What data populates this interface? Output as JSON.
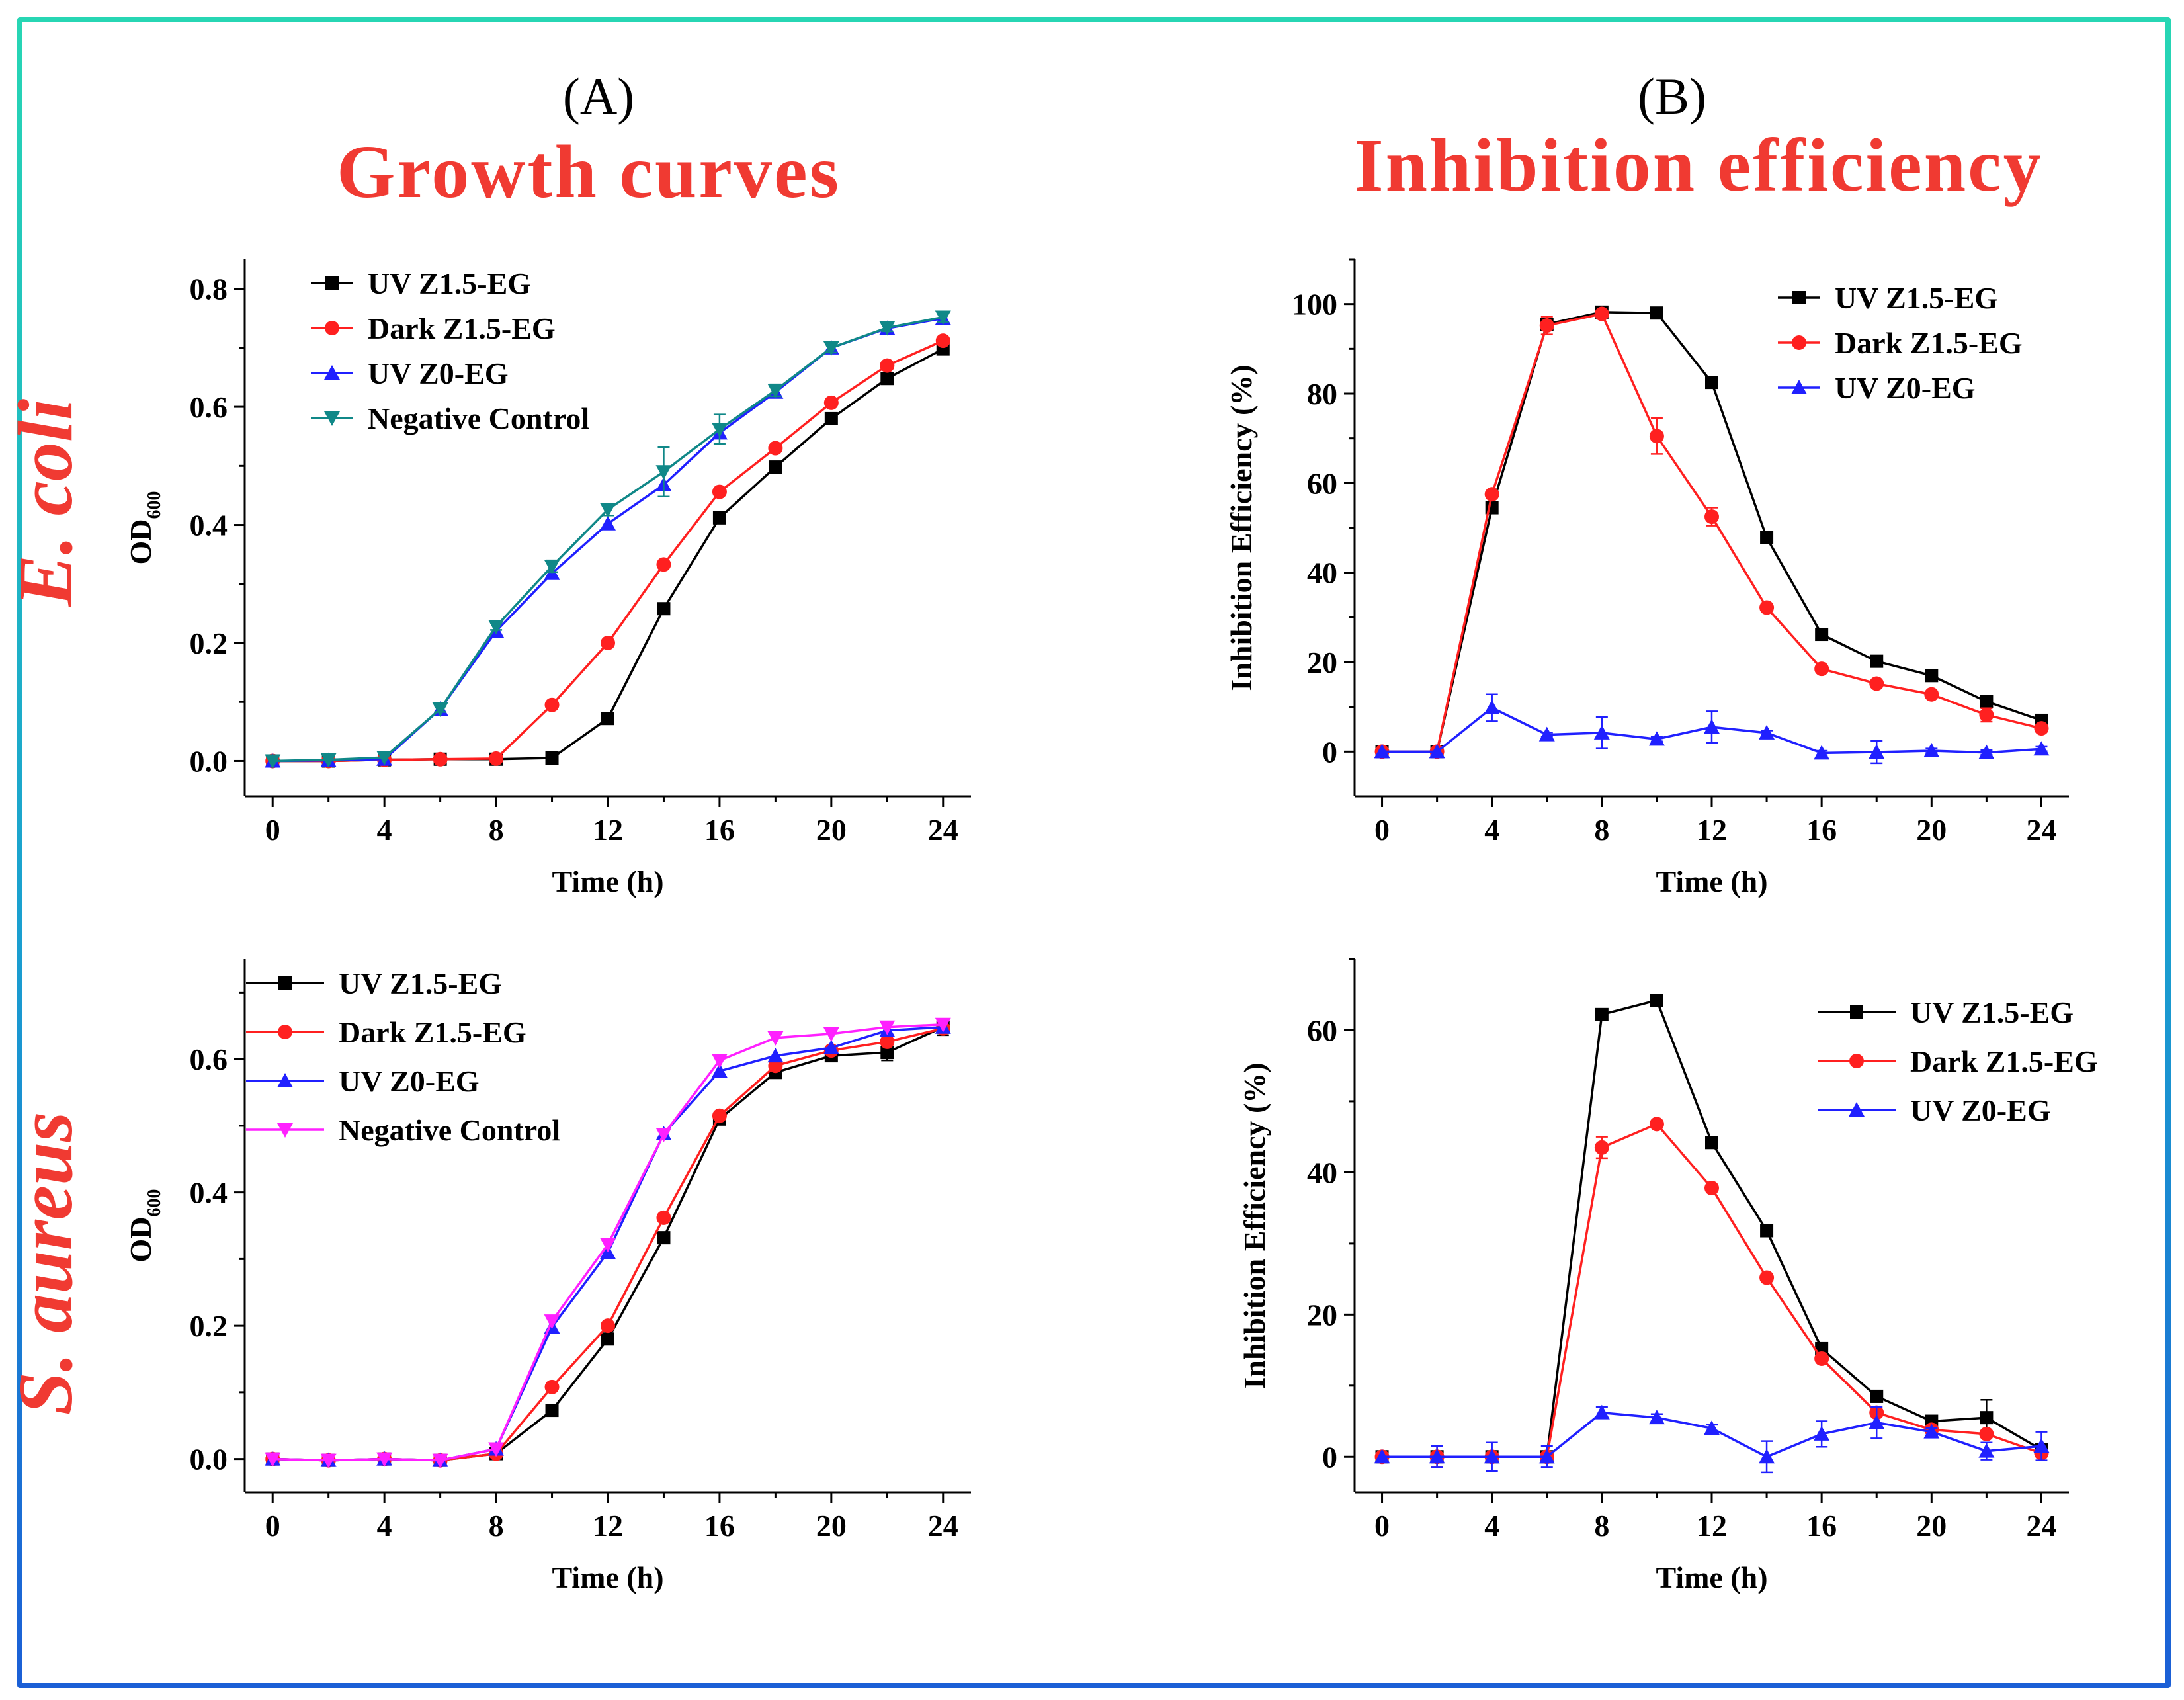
{
  "figure": {
    "panel_a_label": "(A)",
    "panel_b_label": "(B)",
    "panel_a_title": "Growth curves",
    "panel_b_title": "Inhibition efficiency",
    "row1_species": "E. coli",
    "row2_species": "S. aureus",
    "ylabel_od_main": "OD",
    "ylabel_od_sub": "600"
  },
  "colors": {
    "title_red": "#f03a32",
    "series_black": "#000000",
    "series_red": "#ff2020",
    "series_blue": "#2020ff",
    "series_teal": "#108888",
    "series_magenta": "#ff20ff"
  },
  "chart_data": [
    {
      "id": "ecoli-growth",
      "type": "line",
      "title": "Growth curves",
      "xlabel": "Time (h)",
      "ylabel": "OD600",
      "xlim": [
        -1,
        25
      ],
      "ylim": [
        -0.06,
        0.85
      ],
      "xticks": [
        0,
        4,
        8,
        12,
        16,
        20,
        24
      ],
      "yticks": [
        0.0,
        0.2,
        0.4,
        0.6,
        0.8
      ],
      "ytick_labels": [
        "0.0",
        "0.2",
        "0.4",
        "0.6",
        "0.8"
      ],
      "legend_position": "top-left",
      "x": [
        0,
        2,
        4,
        6,
        8,
        10,
        12,
        14,
        16,
        18,
        20,
        22,
        24
      ],
      "series": [
        {
          "name": "UV Z1.5-EG",
          "color": "#000000",
          "marker": "square",
          "values": [
            0.0,
            0.0,
            0.002,
            0.003,
            0.003,
            0.005,
            0.072,
            0.258,
            0.412,
            0.498,
            0.58,
            0.648,
            0.698
          ]
        },
        {
          "name": "Dark Z1.5-EG",
          "color": "#ff2020",
          "marker": "circle",
          "values": [
            0.0,
            0.0,
            0.002,
            0.003,
            0.004,
            0.095,
            0.2,
            0.333,
            0.456,
            0.53,
            0.607,
            0.67,
            0.712
          ]
        },
        {
          "name": "UV Z0-EG",
          "color": "#2020ff",
          "marker": "triangle-up",
          "values": [
            0.0,
            0.001,
            0.003,
            0.088,
            0.22,
            0.318,
            0.402,
            0.468,
            0.556,
            0.625,
            0.7,
            0.733,
            0.75
          ]
        },
        {
          "name": "Negative Control",
          "color": "#108888",
          "marker": "triangle-down",
          "values": [
            0.0,
            0.002,
            0.006,
            0.088,
            0.228,
            0.33,
            0.426,
            0.49,
            0.562,
            0.628,
            0.7,
            0.734,
            0.752
          ],
          "errors": [
            0,
            0,
            0,
            0.005,
            0.006,
            0.01,
            0.01,
            0.042,
            0.025,
            0.01,
            0.008,
            0.006,
            0.008
          ]
        }
      ]
    },
    {
      "id": "ecoli-inhibition",
      "type": "line",
      "title": "Inhibition efficiency",
      "xlabel": "Time (h)",
      "ylabel": "Inhibition Efficiency (%)",
      "xlim": [
        -1,
        25
      ],
      "ylim": [
        -10,
        110
      ],
      "xticks": [
        0,
        4,
        8,
        12,
        16,
        20,
        24
      ],
      "yticks": [
        0,
        20,
        40,
        60,
        80,
        100
      ],
      "ytick_labels": [
        "0",
        "20",
        "40",
        "60",
        "80",
        "100"
      ],
      "legend_position": "top-right",
      "x": [
        0,
        2,
        4,
        6,
        8,
        10,
        12,
        14,
        16,
        18,
        20,
        22,
        24
      ],
      "series": [
        {
          "name": "UV Z1.5-EG",
          "color": "#000000",
          "marker": "square",
          "values": [
            0,
            0,
            54.5,
            95.5,
            98.2,
            98.0,
            82.5,
            47.8,
            26.2,
            20.2,
            17.0,
            11.2,
            7.0
          ]
        },
        {
          "name": "Dark Z1.5-EG",
          "color": "#ff2020",
          "marker": "circle",
          "values": [
            0,
            0,
            57.5,
            95.2,
            97.8,
            70.5,
            52.5,
            32.2,
            18.5,
            15.2,
            12.8,
            8.2,
            5.2
          ],
          "errors": [
            0,
            0,
            0,
            2,
            0,
            4,
            2,
            0,
            0,
            0,
            0,
            1.5,
            0
          ]
        },
        {
          "name": "UV Z0-EG",
          "color": "#2020ff",
          "marker": "triangle-up",
          "values": [
            0,
            0,
            9.8,
            3.8,
            4.2,
            2.8,
            5.5,
            4.2,
            -0.3,
            -0.1,
            0.2,
            -0.2,
            0.6
          ],
          "errors": [
            0,
            0,
            3,
            0.5,
            3.5,
            0.5,
            3.5,
            0.5,
            0.5,
            2.5,
            0.5,
            0.5,
            0.5
          ]
        }
      ]
    },
    {
      "id": "saureus-growth",
      "type": "line",
      "title": "",
      "xlabel": "Time (h)",
      "ylabel": "OD600",
      "xlim": [
        -1,
        25
      ],
      "ylim": [
        -0.05,
        0.75
      ],
      "xticks": [
        0,
        4,
        8,
        12,
        16,
        20,
        24
      ],
      "yticks": [
        0.0,
        0.2,
        0.4,
        0.6
      ],
      "ytick_labels": [
        "0.0",
        "0.2",
        "0.4",
        "0.6"
      ],
      "legend_position": "top-left",
      "x": [
        0,
        2,
        4,
        6,
        8,
        10,
        12,
        14,
        16,
        18,
        20,
        22,
        24
      ],
      "series": [
        {
          "name": "UV Z1.5-EG",
          "color": "#000000",
          "marker": "square",
          "values": [
            0.0,
            -0.002,
            0.0,
            -0.002,
            0.008,
            0.073,
            0.18,
            0.332,
            0.51,
            0.58,
            0.605,
            0.61,
            0.648
          ],
          "errors": [
            0,
            0,
            0,
            0,
            0,
            0,
            0,
            0,
            0,
            0,
            0,
            0.012,
            0.012
          ]
        },
        {
          "name": "Dark Z1.5-EG",
          "color": "#ff2020",
          "marker": "circle",
          "values": [
            0.0,
            -0.002,
            0.0,
            -0.002,
            0.008,
            0.108,
            0.2,
            0.362,
            0.515,
            0.59,
            0.613,
            0.626,
            0.646
          ]
        },
        {
          "name": "UV Z0-EG",
          "color": "#2020ff",
          "marker": "triangle-up",
          "values": [
            0.0,
            -0.002,
            0.0,
            -0.002,
            0.015,
            0.198,
            0.31,
            0.488,
            0.582,
            0.605,
            0.617,
            0.643,
            0.648
          ]
        },
        {
          "name": "Negative Control",
          "color": "#ff20ff",
          "marker": "triangle-down",
          "values": [
            0.0,
            -0.002,
            0.0,
            -0.002,
            0.015,
            0.207,
            0.322,
            0.487,
            0.598,
            0.632,
            0.638,
            0.648,
            0.652
          ]
        }
      ]
    },
    {
      "id": "saureus-inhibition",
      "type": "line",
      "title": "",
      "xlabel": "Time (h)",
      "ylabel": "Inhibition Efficiency (%)",
      "xlim": [
        -1,
        25
      ],
      "ylim": [
        -5,
        70
      ],
      "xticks": [
        0,
        4,
        8,
        12,
        16,
        20,
        24
      ],
      "yticks": [
        0,
        20,
        40,
        60
      ],
      "ytick_labels": [
        "0",
        "20",
        "40",
        "60"
      ],
      "legend_position": "top-right",
      "x": [
        0,
        2,
        4,
        6,
        8,
        10,
        12,
        14,
        16,
        18,
        20,
        22,
        24
      ],
      "series": [
        {
          "name": "UV Z1.5-EG",
          "color": "#000000",
          "marker": "square",
          "values": [
            0,
            0,
            0,
            0,
            62.2,
            64.2,
            44.2,
            31.8,
            15.2,
            8.5,
            5.0,
            5.5,
            1.0
          ],
          "errors": [
            0,
            0,
            0,
            0,
            0,
            0,
            0,
            0,
            0,
            0.8,
            0,
            2.5,
            0
          ]
        },
        {
          "name": "Dark Z1.5-EG",
          "color": "#ff2020",
          "marker": "circle",
          "values": [
            0,
            0,
            0,
            0,
            43.5,
            46.8,
            37.8,
            25.2,
            13.8,
            6.2,
            3.8,
            3.2,
            0.5
          ],
          "errors": [
            0,
            1.5,
            0,
            0,
            1.5,
            0,
            0,
            0,
            0,
            0,
            0,
            0,
            0
          ]
        },
        {
          "name": "UV Z0-EG",
          "color": "#2020ff",
          "marker": "triangle-up",
          "values": [
            0,
            0,
            0,
            0,
            6.2,
            5.5,
            4.0,
            0.0,
            3.2,
            4.8,
            3.5,
            0.8,
            1.5
          ],
          "errors": [
            0,
            1.5,
            2.0,
            1.5,
            0.8,
            0.5,
            0.5,
            2.2,
            1.8,
            2.2,
            0.5,
            1.2,
            2.0
          ]
        }
      ]
    }
  ]
}
